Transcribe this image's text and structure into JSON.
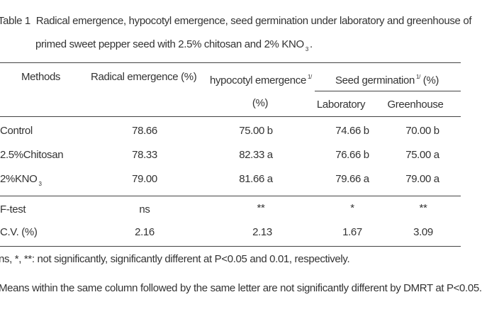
{
  "caption": {
    "label": "Table 1",
    "text": "Radical emergence, hypocotyl emergence, seed germination under laboratory and greenhouse of",
    "line2": "primed sweet pepper seed with 2.5% chitosan and 2% KNO",
    "line2_sub": "3",
    "line2_end": "."
  },
  "header": {
    "methods": "Methods",
    "radical": "Radical emergence (%)",
    "hypocotyl": "hypocotyl emergence",
    "hypocotyl_mark": "1/",
    "hypocotyl_unit": "(%)",
    "germination": "Seed germination",
    "germination_mark": "1/",
    "germination_unit": "(%)",
    "laboratory": "Laboratory",
    "greenhouse": "Greenhouse"
  },
  "rows": [
    {
      "method": "Control",
      "method_sub": "",
      "radical": "78.66",
      "hypocotyl": "75.00 b",
      "laboratory": "74.66 b",
      "greenhouse": "70.00 b"
    },
    {
      "method": "2.5%Chitosan",
      "method_sub": "",
      "radical": "78.33",
      "hypocotyl": "82.33 a",
      "laboratory": "76.66 b",
      "greenhouse": "75.00 a"
    },
    {
      "method": "2%KNO",
      "method_sub": "3",
      "radical": "79.00",
      "hypocotyl": "81.66 a",
      "laboratory": "79.66 a",
      "greenhouse": "79.00 a"
    }
  ],
  "stats": [
    {
      "label": "F-test",
      "radical": "ns",
      "hypocotyl": "**",
      "laboratory": "*",
      "greenhouse": "**"
    },
    {
      "label": "C.V. (%)",
      "radical": "2.16",
      "hypocotyl": "2.13",
      "laboratory": "1.67",
      "greenhouse": "3.09"
    }
  ],
  "notes": {
    "significance": "ns, *, **: not significantly, significantly different at P<0.05 and 0.01, respectively.",
    "means": "Means within the same column followed by the same letter are not significantly different by DMRT at P<0.05."
  }
}
